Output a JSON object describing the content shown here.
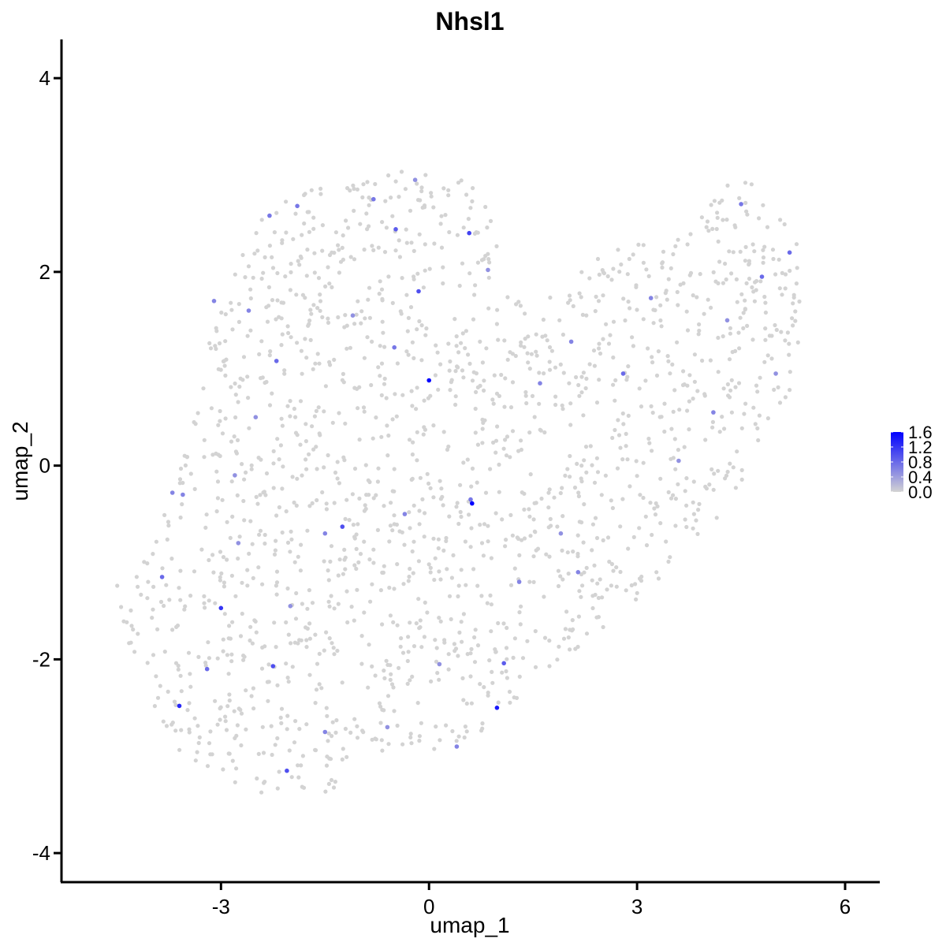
{
  "chart_data": {
    "type": "scatter",
    "title": "Nhsl1",
    "xlabel": "umap_1",
    "ylabel": "umap_2",
    "xlim": [
      -5.3,
      6.5
    ],
    "ylim": [
      -4.3,
      4.4
    ],
    "x_ticks": [
      -3,
      0,
      3,
      6
    ],
    "x_tick_labels": [
      "-3",
      "0",
      "3",
      "6"
    ],
    "y_ticks": [
      -4,
      -2,
      0,
      2,
      4
    ],
    "y_tick_labels": [
      "-4",
      "-2",
      "0",
      "2",
      "4"
    ],
    "grid": false,
    "legend_position": "right",
    "color_scale": {
      "low_color": "#d3d3d3",
      "high_color": "#0000ff",
      "min": 0.0,
      "max": 1.6,
      "ticks": [
        0.0,
        0.4,
        0.8,
        1.2,
        1.6
      ],
      "tick_labels": [
        "0.0",
        "0.4",
        "0.8",
        "1.2",
        "1.6"
      ]
    },
    "expressing_points": [
      {
        "x": 0.0,
        "y": 0.88,
        "v": 1.6
      },
      {
        "x": 0.62,
        "y": -0.39,
        "v": 1.6
      },
      {
        "x": 0.98,
        "y": -2.5,
        "v": 1.4
      },
      {
        "x": -3.6,
        "y": -2.48,
        "v": 1.3
      },
      {
        "x": -3.0,
        "y": -1.47,
        "v": 1.2
      },
      {
        "x": 0.58,
        "y": 2.4,
        "v": 1.1
      },
      {
        "x": -0.15,
        "y": 1.8,
        "v": 1.0
      },
      {
        "x": -1.25,
        "y": -0.63,
        "v": 1.0
      },
      {
        "x": -2.25,
        "y": -2.07,
        "v": 1.0
      },
      {
        "x": -2.05,
        "y": -3.15,
        "v": 1.0
      },
      {
        "x": -0.48,
        "y": 2.44,
        "v": 0.9
      },
      {
        "x": 1.08,
        "y": -2.04,
        "v": 0.9
      },
      {
        "x": -3.85,
        "y": -1.15,
        "v": 0.8
      },
      {
        "x": -3.2,
        "y": -2.1,
        "v": 0.8
      },
      {
        "x": -2.2,
        "y": 1.08,
        "v": 0.8
      },
      {
        "x": 5.2,
        "y": 2.2,
        "v": 0.8
      },
      {
        "x": 4.8,
        "y": 1.95,
        "v": 0.8
      },
      {
        "x": 2.8,
        "y": 0.95,
        "v": 0.8
      },
      {
        "x": -0.8,
        "y": 2.75,
        "v": 0.7
      },
      {
        "x": -1.9,
        "y": 2.68,
        "v": 0.7
      },
      {
        "x": -2.3,
        "y": 2.58,
        "v": 0.7
      },
      {
        "x": 0.6,
        "y": -0.35,
        "v": 0.7
      },
      {
        "x": 4.5,
        "y": 2.7,
        "v": 0.7
      },
      {
        "x": -0.5,
        "y": 1.22,
        "v": 0.7
      },
      {
        "x": -2.6,
        "y": 1.6,
        "v": 0.6
      },
      {
        "x": -3.1,
        "y": 1.7,
        "v": 0.6
      },
      {
        "x": 1.6,
        "y": 0.85,
        "v": 0.6
      },
      {
        "x": 2.05,
        "y": 1.28,
        "v": 0.6
      },
      {
        "x": 3.2,
        "y": 1.73,
        "v": 0.6
      },
      {
        "x": 4.1,
        "y": 0.55,
        "v": 0.6
      },
      {
        "x": -3.7,
        "y": -0.28,
        "v": 0.6
      },
      {
        "x": -3.55,
        "y": -0.3,
        "v": 0.6
      },
      {
        "x": -1.5,
        "y": -0.7,
        "v": 0.6
      },
      {
        "x": 1.3,
        "y": -1.2,
        "v": 0.6
      },
      {
        "x": 2.15,
        "y": -1.1,
        "v": 0.6
      },
      {
        "x": -0.35,
        "y": -0.5,
        "v": 0.6
      },
      {
        "x": 0.4,
        "y": -2.9,
        "v": 0.6
      },
      {
        "x": -1.5,
        "y": -2.75,
        "v": 0.6
      },
      {
        "x": -2.8,
        "y": -0.1,
        "v": 0.5
      },
      {
        "x": -2.5,
        "y": 0.5,
        "v": 0.5
      },
      {
        "x": 1.9,
        "y": -0.7,
        "v": 0.5
      },
      {
        "x": 3.6,
        "y": 0.05,
        "v": 0.5
      },
      {
        "x": 4.3,
        "y": 1.5,
        "v": 0.5
      },
      {
        "x": 5.0,
        "y": 0.95,
        "v": 0.5
      },
      {
        "x": -0.2,
        "y": 2.95,
        "v": 0.5
      },
      {
        "x": 0.85,
        "y": 2.02,
        "v": 0.5
      },
      {
        "x": -1.1,
        "y": 1.55,
        "v": 0.5
      },
      {
        "x": -2.0,
        "y": -1.45,
        "v": 0.5
      },
      {
        "x": -2.75,
        "y": -0.8,
        "v": 0.5
      },
      {
        "x": -0.6,
        "y": -2.7,
        "v": 0.5
      },
      {
        "x": 0.15,
        "y": -2.05,
        "v": 0.5
      }
    ]
  }
}
